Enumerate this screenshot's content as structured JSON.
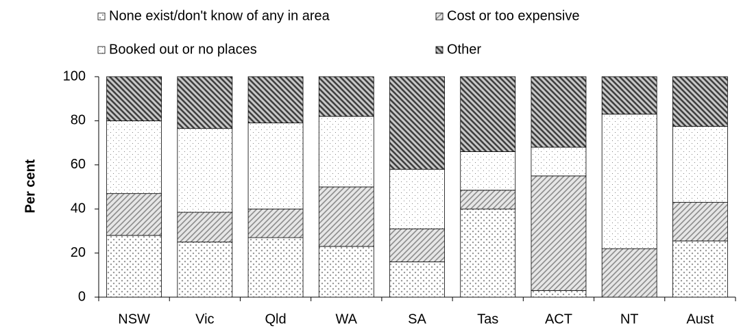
{
  "chart_data": {
    "type": "stacked-bar",
    "y_label": "Per cent",
    "categories": [
      "NSW",
      "Vic",
      "Qld",
      "WA",
      "SA",
      "Tas",
      "ACT",
      "NT",
      "Aust"
    ],
    "series": [
      {
        "name": "None exist/don't know of any in area",
        "color": "#7f7f7f",
        "pattern": "crosses",
        "values": [
          28,
          25,
          27,
          23,
          16,
          40,
          3,
          0,
          25.5
        ]
      },
      {
        "name": "Cost or too expensive",
        "color": "#8c8c8c",
        "pattern": "hatch",
        "values": [
          19,
          13.5,
          13,
          27,
          15,
          8.5,
          52,
          22,
          17.5
        ]
      },
      {
        "name": "Booked out or no places",
        "color": "#7f7f7f",
        "pattern": "dots",
        "values": [
          33,
          38,
          39,
          32,
          27,
          17.5,
          13,
          61,
          34.5
        ]
      },
      {
        "name": "Other",
        "color": "#404040",
        "pattern": "dense-hatch",
        "values": [
          20,
          23.5,
          21,
          18,
          42,
          34,
          32,
          17,
          22.5
        ]
      }
    ],
    "ylim": [
      0,
      100
    ],
    "yticks": [
      0,
      20,
      40,
      60,
      80,
      100
    ]
  }
}
